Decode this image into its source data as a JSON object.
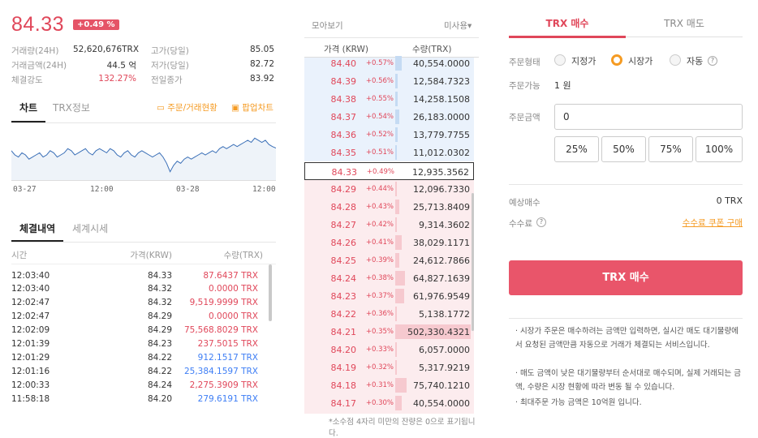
{
  "ticker": {
    "price": "84.33",
    "change_pct": "+0.49 %",
    "stats": [
      {
        "label": "거래량(24H)",
        "value": "52,620,676TRX"
      },
      {
        "label": "거래금액(24H)",
        "value": "44.5 억"
      },
      {
        "label": "체결강도",
        "value": "132.27%"
      }
    ],
    "stats2": [
      {
        "label": "고가(당일)",
        "value": "85.05"
      },
      {
        "label": "저가(당일)",
        "value": "82.72"
      },
      {
        "label": "전일종가",
        "value": "83.92"
      }
    ]
  },
  "chart_tabs": {
    "chart": "차트",
    "info": "TRX정보",
    "order_link": "주문/거래현황",
    "popup_link": "팝업차트"
  },
  "chart_data": {
    "type": "line",
    "title": "",
    "x_ticks": [
      "03-27",
      "12:00",
      "03-28",
      "12:00"
    ],
    "values": [
      84.2,
      84.0,
      83.9,
      84.1,
      84.0,
      83.8,
      83.9,
      84.0,
      84.1,
      83.9,
      84.0,
      84.2,
      84.1,
      83.9,
      84.0,
      84.1,
      84.3,
      84.2,
      84.0,
      84.1,
      84.2,
      84.3,
      84.1,
      84.0,
      84.2,
      84.3,
      84.2,
      84.1,
      84.3,
      84.2,
      84.0,
      83.9,
      84.1,
      84.2,
      84.0,
      83.9,
      84.1,
      84.2,
      84.1,
      84.0,
      83.9,
      84.0,
      84.1,
      83.9,
      83.6,
      83.2,
      83.5,
      83.7,
      83.6,
      83.8,
      83.9,
      83.8,
      83.9,
      84.0,
      84.1,
      84.0,
      84.1,
      84.2,
      84.1,
      84.3,
      84.4,
      84.3,
      84.4,
      84.5,
      84.4,
      84.5,
      84.6,
      84.7,
      84.6,
      84.8,
      84.7,
      84.6,
      84.7,
      84.5,
      84.4,
      84.33
    ],
    "ylim": [
      82.8,
      85.2
    ]
  },
  "trades": {
    "tab_active": "체결내역",
    "tab_other": "세계시세",
    "headers": {
      "time": "시간",
      "price": "가격(KRW)",
      "qty": "수량(TRX)"
    },
    "rows": [
      {
        "time": "12:03:40",
        "price": "84.33",
        "qty": "87.6437 TRX",
        "side": "buy"
      },
      {
        "time": "12:03:40",
        "price": "84.32",
        "qty": "0.0000 TRX",
        "side": "buy"
      },
      {
        "time": "12:02:47",
        "price": "84.32",
        "qty": "9,519.9999 TRX",
        "side": "buy"
      },
      {
        "time": "12:02:47",
        "price": "84.29",
        "qty": "0.0000 TRX",
        "side": "buy"
      },
      {
        "time": "12:02:09",
        "price": "84.29",
        "qty": "75,568.8029 TRX",
        "side": "buy"
      },
      {
        "time": "12:01:39",
        "price": "84.23",
        "qty": "237.5015 TRX",
        "side": "buy"
      },
      {
        "time": "12:01:29",
        "price": "84.22",
        "qty": "912.1517 TRX",
        "side": "sell"
      },
      {
        "time": "12:01:16",
        "price": "84.22",
        "qty": "25,384.1597 TRX",
        "side": "sell"
      },
      {
        "time": "12:00:33",
        "price": "84.24",
        "qty": "2,275.3909 TRX",
        "side": "buy"
      },
      {
        "time": "11:58:18",
        "price": "84.20",
        "qty": "279.6191 TRX",
        "side": "sell"
      }
    ]
  },
  "orderbook": {
    "view_label": "모아보기",
    "unused_label": "미사용▾",
    "headers": {
      "price": "가격 (KRW)",
      "qty": "수량(TRX)"
    },
    "footnote": "*소수점 4자리 미만의 잔량은 0으로 표기됩니다.",
    "asks": [
      {
        "price": "84.40",
        "rate": "+0.57%",
        "qty": "40,554.0000",
        "fill": 0.08
      },
      {
        "price": "84.39",
        "rate": "+0.56%",
        "qty": "12,584.7323",
        "fill": 0.03
      },
      {
        "price": "84.38",
        "rate": "+0.55%",
        "qty": "14,258.1508",
        "fill": 0.03
      },
      {
        "price": "84.37",
        "rate": "+0.54%",
        "qty": "26,183.0000",
        "fill": 0.05
      },
      {
        "price": "84.36",
        "rate": "+0.52%",
        "qty": "13,779.7755",
        "fill": 0.03
      },
      {
        "price": "84.35",
        "rate": "+0.51%",
        "qty": "11,012.0302",
        "fill": 0.02
      }
    ],
    "current": {
      "price": "84.33",
      "rate": "+0.49%",
      "qty": "12,935.3562"
    },
    "bids": [
      {
        "price": "84.29",
        "rate": "+0.44%",
        "qty": "12,096.7330",
        "fill": 0.02
      },
      {
        "price": "84.28",
        "rate": "+0.43%",
        "qty": "25,713.8409",
        "fill": 0.05
      },
      {
        "price": "84.27",
        "rate": "+0.42%",
        "qty": "9,314.3602",
        "fill": 0.02
      },
      {
        "price": "84.26",
        "rate": "+0.41%",
        "qty": "38,029.1171",
        "fill": 0.08
      },
      {
        "price": "84.25",
        "rate": "+0.39%",
        "qty": "24,612.7866",
        "fill": 0.05
      },
      {
        "price": "84.24",
        "rate": "+0.38%",
        "qty": "64,827.1639",
        "fill": 0.13
      },
      {
        "price": "84.23",
        "rate": "+0.37%",
        "qty": "61,976.9549",
        "fill": 0.12
      },
      {
        "price": "84.22",
        "rate": "+0.36%",
        "qty": "5,138.1772",
        "fill": 0.01
      },
      {
        "price": "84.21",
        "rate": "+0.35%",
        "qty": "502,330.4321",
        "fill": 0.98
      },
      {
        "price": "84.20",
        "rate": "+0.33%",
        "qty": "6,057.0000",
        "fill": 0.01
      },
      {
        "price": "84.19",
        "rate": "+0.32%",
        "qty": "5,317.9219",
        "fill": 0.01
      },
      {
        "price": "84.18",
        "rate": "+0.31%",
        "qty": "75,740.1210",
        "fill": 0.15
      },
      {
        "price": "84.17",
        "rate": "+0.30%",
        "qty": "40,554.0000",
        "fill": 0.08
      }
    ]
  },
  "order_form": {
    "tab_buy": "TRX 매수",
    "tab_sell": "TRX 매도",
    "order_type_label": "주문형태",
    "types": [
      "지정가",
      "시장가",
      "자동"
    ],
    "help_q": "?",
    "available_label": "주문가능",
    "available_value": "1 원",
    "amount_label": "주문금액",
    "amount_value": "0",
    "pct_buttons": [
      "25%",
      "50%",
      "75%",
      "100%"
    ],
    "expected_label": "예상매수",
    "expected_value": "0 TRX",
    "fee_label": "수수료",
    "coupon_link": "수수료 쿠폰 구매",
    "submit": "TRX 매수",
    "notes": [
      "· 시장가 주문은 매수하려는 금액만 입력하면, 실시간 매도 대기물량에서 요청된 금액만큼 자동으로 거래가 체결되는 서비스입니다.",
      "· 매도 금액이 낮은 대기물량부터 순서대로 매수되며, 실제 거래되는 금액, 수량은 시장 현황에 따라 변동 될 수 있습니다.",
      "· 최대주문 가능 금액은 10억원 입니다."
    ]
  },
  "colors": {
    "red": "#e0475a",
    "blue": "#3e7ef5",
    "orange": "#f59b23",
    "ask_bg": "#eaf2fc",
    "bid_bg": "#fcecee"
  }
}
